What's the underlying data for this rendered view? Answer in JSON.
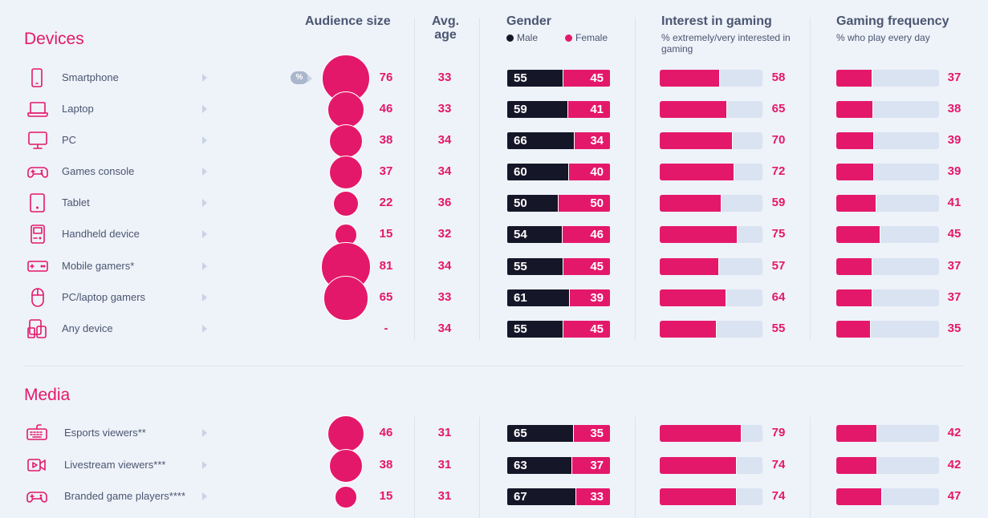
{
  "colors": {
    "accent": "#e4186a",
    "male": "#161629",
    "track": "#dae3f1"
  },
  "headers": {
    "audience": "Audience size",
    "age": "Avg. age",
    "gender": "Gender",
    "male": "Male",
    "female": "Female",
    "interest": "Interest in gaming",
    "interest_sub": "% extremely/very interested in gaming",
    "frequency": "Gaming frequency",
    "frequency_sub": "% who play every day",
    "percent_toggle": "%"
  },
  "sections": [
    {
      "title": "Devices",
      "rows": [
        {
          "label": "Smartphone",
          "icon": "smartphone-icon",
          "audience": "76",
          "age": "33",
          "male": "55",
          "female": "45",
          "interest": "58",
          "frequency": "37"
        },
        {
          "label": "Laptop",
          "icon": "laptop-icon",
          "audience": "46",
          "age": "33",
          "male": "59",
          "female": "41",
          "interest": "65",
          "frequency": "38"
        },
        {
          "label": "PC",
          "icon": "monitor-icon",
          "audience": "38",
          "age": "34",
          "male": "66",
          "female": "34",
          "interest": "70",
          "frequency": "39"
        },
        {
          "label": "Games console",
          "icon": "gamepad-icon",
          "audience": "37",
          "age": "34",
          "male": "60",
          "female": "40",
          "interest": "72",
          "frequency": "39"
        },
        {
          "label": "Tablet",
          "icon": "tablet-icon",
          "audience": "22",
          "age": "36",
          "male": "50",
          "female": "50",
          "interest": "59",
          "frequency": "41"
        },
        {
          "label": "Handheld device",
          "icon": "handheld-icon",
          "audience": "15",
          "age": "32",
          "male": "54",
          "female": "46",
          "interest": "75",
          "frequency": "45"
        },
        {
          "label": "Mobile gamers*",
          "icon": "mobile-game-icon",
          "audience": "81",
          "age": "34",
          "male": "55",
          "female": "45",
          "interest": "57",
          "frequency": "37"
        },
        {
          "label": "PC/laptop gamers",
          "icon": "mouse-icon",
          "audience": "65",
          "age": "33",
          "male": "61",
          "female": "39",
          "interest": "64",
          "frequency": "37"
        },
        {
          "label": "Any device",
          "icon": "multi-device-icon",
          "audience": "-",
          "age": "34",
          "male": "55",
          "female": "45",
          "interest": "55",
          "frequency": "35"
        }
      ]
    },
    {
      "title": "Media",
      "rows": [
        {
          "label": "Esports viewers**",
          "icon": "keyboard-icon",
          "audience": "46",
          "age": "31",
          "male": "65",
          "female": "35",
          "interest": "79",
          "frequency": "42"
        },
        {
          "label": "Livestream viewers***",
          "icon": "video-icon",
          "audience": "38",
          "age": "31",
          "male": "63",
          "female": "37",
          "interest": "74",
          "frequency": "42"
        },
        {
          "label": "Branded game players****",
          "icon": "gamepad-icon",
          "audience": "15",
          "age": "31",
          "male": "67",
          "female": "33",
          "interest": "74",
          "frequency": "47"
        }
      ]
    }
  ]
}
